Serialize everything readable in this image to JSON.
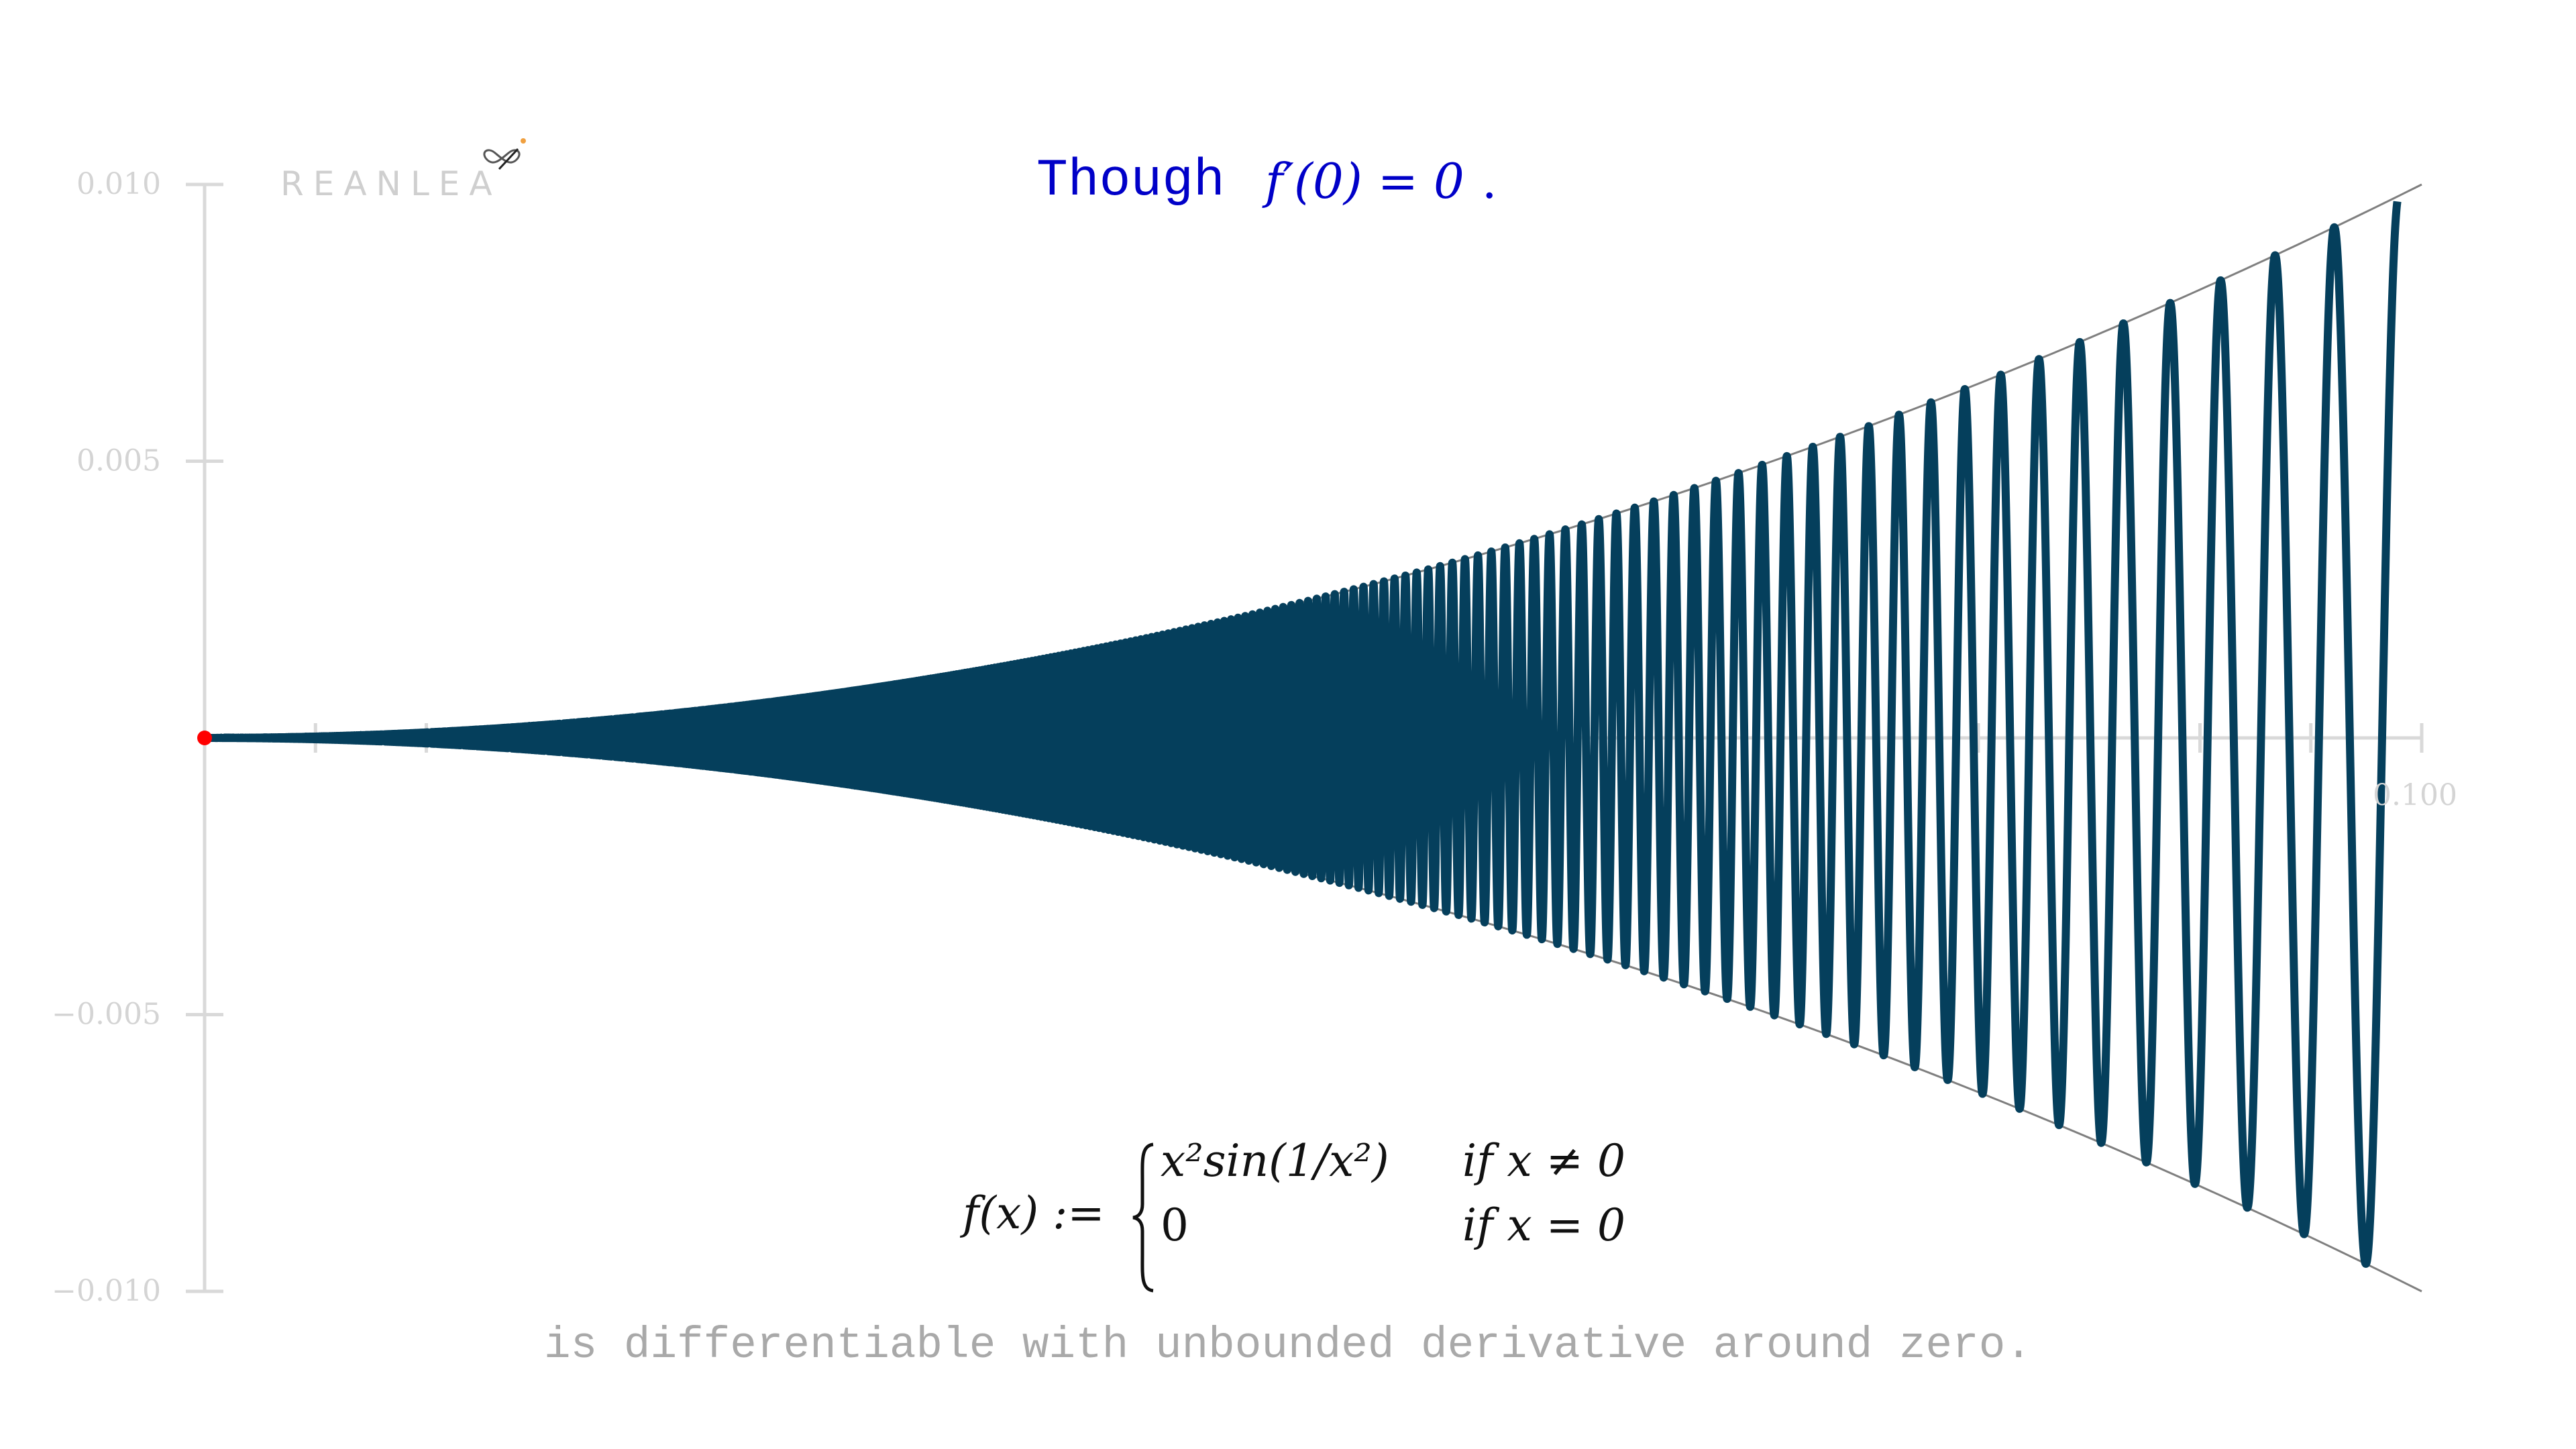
{
  "logo": {
    "text": "REANLEA",
    "icon": "infinity-logo-icon"
  },
  "title": {
    "word": "Though",
    "formula": "f′(0) = 0",
    "period": "."
  },
  "definition": {
    "lhs": "f(x) :=",
    "cases": [
      {
        "expr": "x²sin(1/x²)",
        "cond": "if   x ≠ 0"
      },
      {
        "expr": "0",
        "cond": "if   x = 0"
      }
    ]
  },
  "subtitle": "is differentiable with unbounded derivative around zero.",
  "colors": {
    "curve": "#053f5c",
    "envelope": "#7f7f7f",
    "origin_dot": "#ff0000",
    "axis": "#d9d9d9",
    "title": "#0000c8"
  },
  "chart_data": {
    "type": "line",
    "function": "x^2 * sin(1/x^2)",
    "envelope": [
      "x^2",
      "-x^2"
    ],
    "xlim": [
      0,
      0.1
    ],
    "ylim": [
      -0.01,
      0.01
    ],
    "y_ticks": [
      {
        "value": 0.01,
        "label": "0.010"
      },
      {
        "value": 0.005,
        "label": "0.005"
      },
      {
        "value": -0.005,
        "label": "−0.005"
      },
      {
        "value": -0.01,
        "label": "−0.010"
      }
    ],
    "x_ticks": [
      0.005,
      0.01,
      0.02,
      0.03,
      0.04,
      0.05,
      0.06,
      0.07,
      0.08,
      0.09,
      0.095,
      0.1
    ],
    "x_tick_labels": [
      {
        "value": 0.1,
        "label": "0.100"
      }
    ],
    "highlight_point": {
      "x": 0,
      "y": 0
    },
    "grid": false,
    "legend": "none"
  }
}
